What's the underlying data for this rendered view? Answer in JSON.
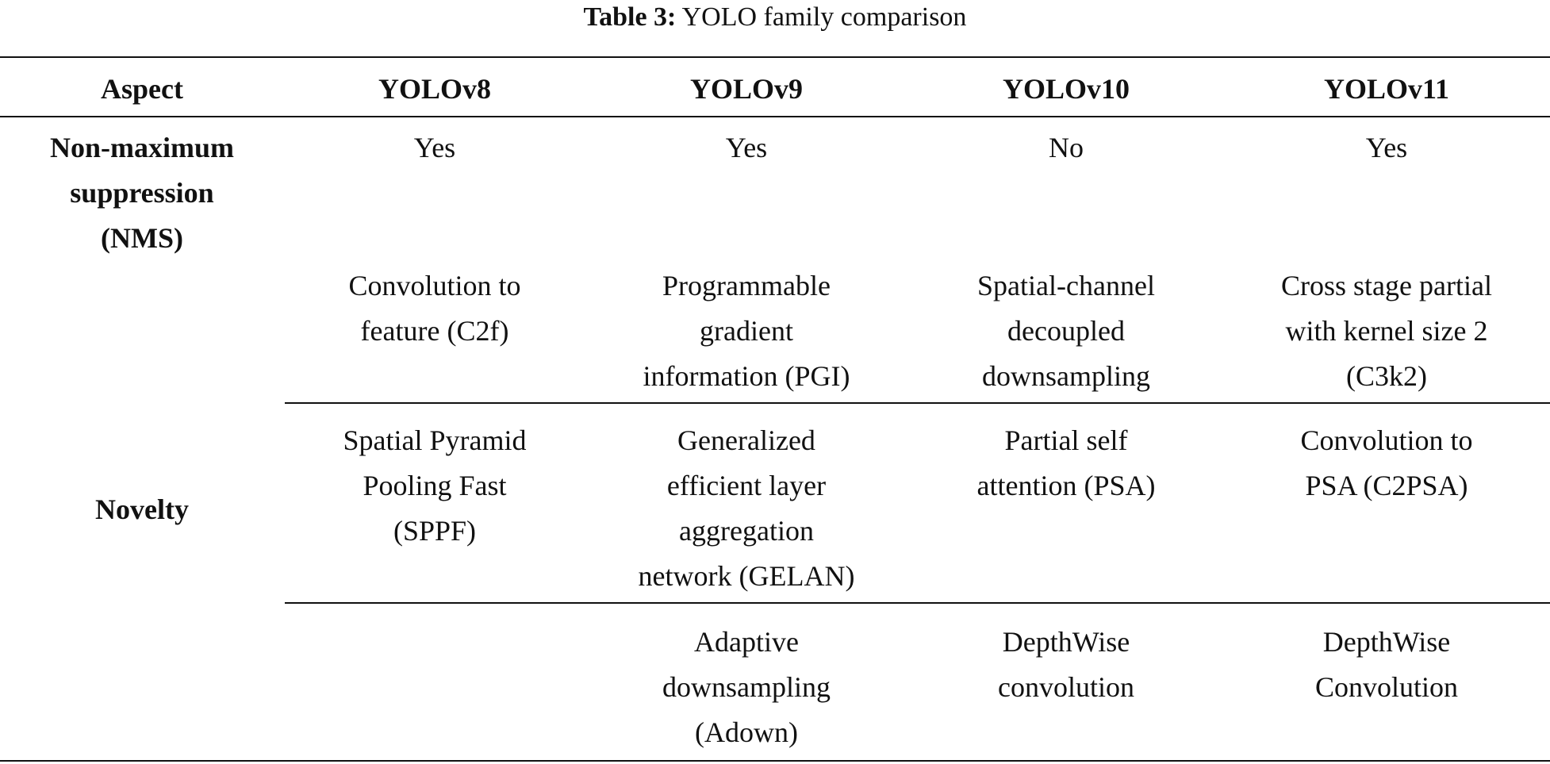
{
  "caption": {
    "label": "Table 3:",
    "text": " YOLO family comparison"
  },
  "table": {
    "headers": [
      "Aspect",
      "YOLOv8",
      "YOLOv9",
      "YOLOv10",
      "YOLOv11"
    ],
    "row_labels": {
      "nms": [
        "Non-maximum",
        "suppression",
        "(NMS)"
      ],
      "novelty": [
        "Novelty"
      ]
    },
    "rows": [
      {
        "cells": [
          [
            "Yes"
          ],
          [
            "Yes"
          ],
          [
            "No"
          ],
          [
            "Yes"
          ]
        ]
      },
      {
        "cells": [
          [
            "Convolution to",
            "feature (C2f)"
          ],
          [
            "Programmable",
            "gradient",
            "information (PGI)"
          ],
          [
            "Spatial-channel",
            "decoupled",
            "downsampling"
          ],
          [
            "Cross stage partial",
            "with kernel size 2",
            "(C3k2)"
          ]
        ]
      },
      {
        "cells": [
          [
            "Spatial Pyramid",
            "Pooling Fast",
            "(SPPF)"
          ],
          [
            "Generalized",
            "efficient layer",
            "aggregation",
            "network (GELAN)"
          ],
          [
            "Partial self",
            "attention (PSA)"
          ],
          [
            "Convolution to",
            "PSA (C2PSA)"
          ]
        ]
      },
      {
        "cells": [
          [],
          [
            "Adaptive",
            "downsampling",
            "(Adown)"
          ],
          [
            "DepthWise",
            "convolution"
          ],
          [
            "DepthWise",
            "Convolution"
          ]
        ]
      }
    ]
  }
}
